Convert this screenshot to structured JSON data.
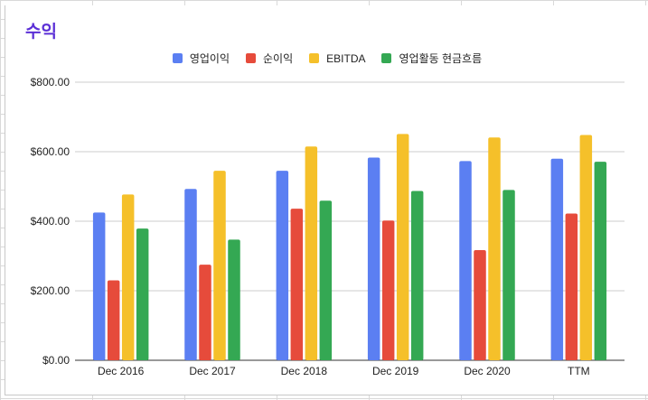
{
  "chart_data": {
    "type": "bar",
    "title": "수익",
    "xlabel": "",
    "ylabel": "",
    "categories": [
      "Dec 2016",
      "Dec 2017",
      "Dec 2018",
      "Dec 2019",
      "Dec 2020",
      "TTM"
    ],
    "series": [
      {
        "name": "영업이익",
        "color": "#5b7ff2",
        "values": [
          425,
          493,
          545,
          583,
          573,
          580
        ]
      },
      {
        "name": "순이익",
        "color": "#e64b3b",
        "values": [
          230,
          275,
          436,
          402,
          317,
          422
        ]
      },
      {
        "name": "EBITDA",
        "color": "#f5c02a",
        "values": [
          477,
          545,
          615,
          651,
          641,
          648
        ]
      },
      {
        "name": "영업활동 현금흐름",
        "color": "#34a853",
        "values": [
          379,
          347,
          459,
          487,
          490,
          571
        ]
      }
    ],
    "ylim": [
      0,
      800
    ],
    "yticks": [
      0,
      200,
      400,
      600,
      800
    ],
    "ytick_labels": [
      "$0.00",
      "$200.00",
      "$400.00",
      "$600.00",
      "$800.00"
    ],
    "grid": true,
    "legend_position": "top-center"
  }
}
